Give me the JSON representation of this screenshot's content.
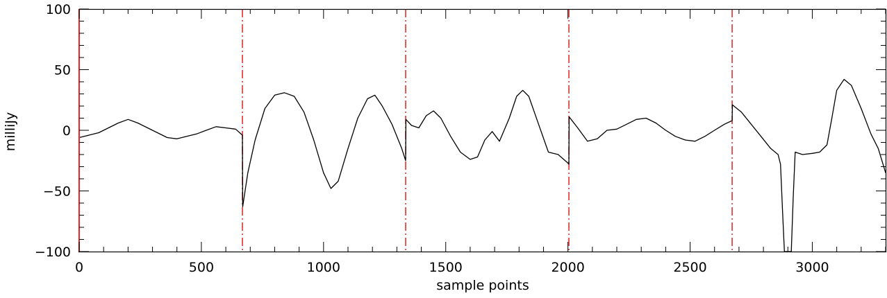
{
  "chart_data": {
    "type": "line",
    "title": "",
    "xlabel": "sample points",
    "ylabel": "milliJy",
    "xlim": [
      0,
      3300
    ],
    "ylim": [
      -100,
      100
    ],
    "x_ticks": [
      0,
      500,
      1000,
      1500,
      2000,
      2500,
      3000
    ],
    "x_tick_labels": [
      "0",
      "500",
      "1000",
      "1500",
      "2000",
      "2500",
      "3000"
    ],
    "y_ticks": [
      -100,
      -50,
      0,
      50,
      100
    ],
    "y_tick_labels": [
      "−100",
      "−50",
      "0",
      "50",
      "100"
    ],
    "grid": false,
    "line_color": "#000000",
    "marker_color": "#e03030",
    "vertical_markers": {
      "style": "dash-dot",
      "x": [
        668,
        1336,
        2004,
        2672
      ]
    },
    "series": [
      {
        "points": [
          [
            0,
            -6
          ],
          [
            40,
            -4
          ],
          [
            80,
            -2
          ],
          [
            120,
            2
          ],
          [
            160,
            6
          ],
          [
            200,
            9
          ],
          [
            240,
            6
          ],
          [
            280,
            2
          ],
          [
            320,
            -2
          ],
          [
            360,
            -6
          ],
          [
            400,
            -7
          ],
          [
            440,
            -5
          ],
          [
            480,
            -3
          ],
          [
            520,
            0
          ],
          [
            560,
            3
          ],
          [
            600,
            2
          ],
          [
            640,
            1
          ],
          [
            668,
            -4
          ],
          [
            669,
            -63
          ],
          [
            690,
            -35
          ],
          [
            720,
            -8
          ],
          [
            760,
            18
          ],
          [
            800,
            29
          ],
          [
            840,
            31
          ],
          [
            880,
            28
          ],
          [
            920,
            15
          ],
          [
            960,
            -8
          ],
          [
            1000,
            -35
          ],
          [
            1030,
            -48
          ],
          [
            1060,
            -42
          ],
          [
            1100,
            -15
          ],
          [
            1140,
            10
          ],
          [
            1180,
            26
          ],
          [
            1210,
            29
          ],
          [
            1240,
            20
          ],
          [
            1280,
            5
          ],
          [
            1320,
            -15
          ],
          [
            1336,
            -25
          ],
          [
            1337,
            9
          ],
          [
            1360,
            4
          ],
          [
            1390,
            2
          ],
          [
            1420,
            12
          ],
          [
            1450,
            16
          ],
          [
            1480,
            10
          ],
          [
            1520,
            -5
          ],
          [
            1560,
            -18
          ],
          [
            1600,
            -24
          ],
          [
            1630,
            -22
          ],
          [
            1660,
            -8
          ],
          [
            1690,
            -1
          ],
          [
            1720,
            -9
          ],
          [
            1760,
            10
          ],
          [
            1790,
            28
          ],
          [
            1815,
            33
          ],
          [
            1840,
            28
          ],
          [
            1880,
            5
          ],
          [
            1920,
            -18
          ],
          [
            1960,
            -20
          ],
          [
            2000,
            -27
          ],
          [
            2004,
            -28
          ],
          [
            2005,
            11
          ],
          [
            2040,
            2
          ],
          [
            2080,
            -9
          ],
          [
            2120,
            -7
          ],
          [
            2160,
            0
          ],
          [
            2200,
            1
          ],
          [
            2240,
            5
          ],
          [
            2280,
            9
          ],
          [
            2320,
            10
          ],
          [
            2360,
            6
          ],
          [
            2400,
            0
          ],
          [
            2440,
            -5
          ],
          [
            2480,
            -8
          ],
          [
            2520,
            -9
          ],
          [
            2560,
            -5
          ],
          [
            2600,
            0
          ],
          [
            2640,
            5
          ],
          [
            2672,
            8
          ],
          [
            2673,
            21
          ],
          [
            2710,
            15
          ],
          [
            2750,
            5
          ],
          [
            2790,
            -5
          ],
          [
            2830,
            -15
          ],
          [
            2860,
            -20
          ],
          [
            2870,
            -28
          ],
          [
            2878,
            -65
          ],
          [
            2886,
            -105
          ],
          [
            2914,
            -105
          ],
          [
            2922,
            -55
          ],
          [
            2930,
            -18
          ],
          [
            2960,
            -20
          ],
          [
            3000,
            -19
          ],
          [
            3030,
            -18
          ],
          [
            3060,
            -12
          ],
          [
            3080,
            10
          ],
          [
            3100,
            33
          ],
          [
            3130,
            42
          ],
          [
            3160,
            37
          ],
          [
            3200,
            18
          ],
          [
            3240,
            -3
          ],
          [
            3270,
            -15
          ],
          [
            3300,
            -35
          ]
        ]
      }
    ]
  }
}
